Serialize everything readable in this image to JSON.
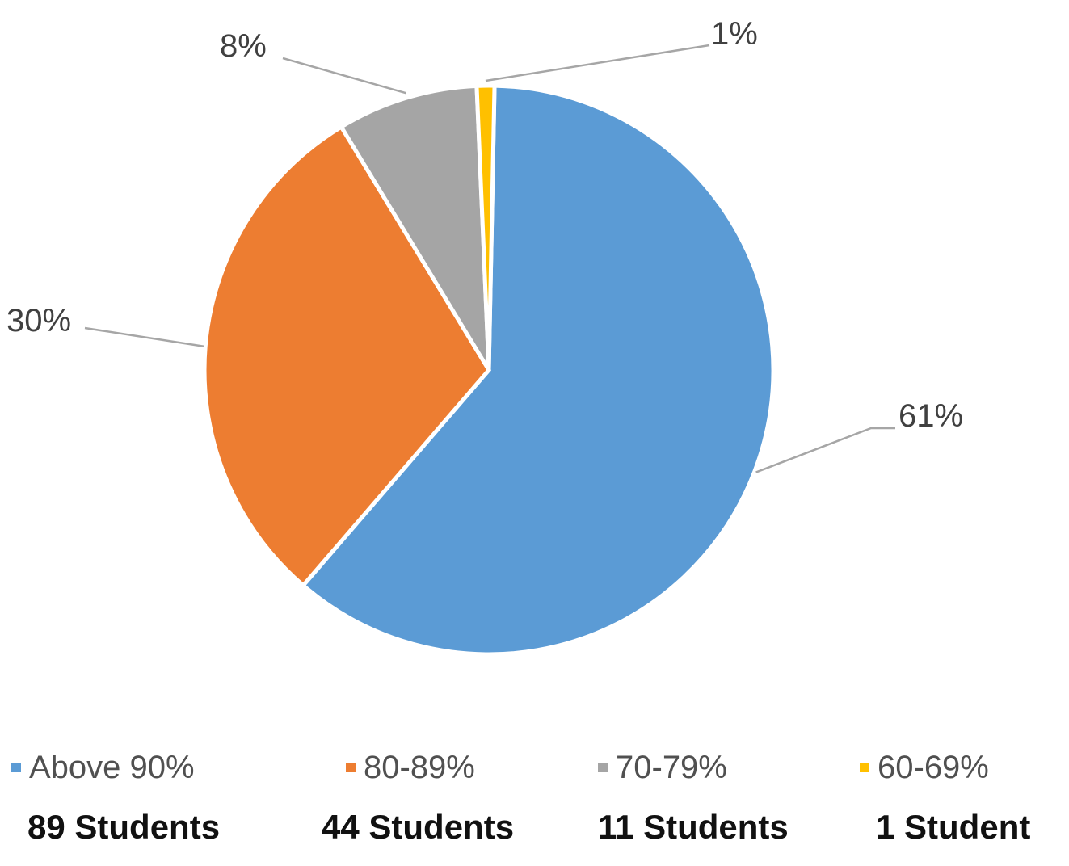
{
  "chart_data": {
    "type": "pie",
    "categories": [
      "Above 90%",
      "80-89%",
      "70-79%",
      "60-69%"
    ],
    "values": [
      61,
      30,
      8,
      1
    ],
    "value_labels": [
      "61%",
      "30%",
      "8%",
      "1%"
    ],
    "counts": [
      "89 Students",
      "44 Students",
      "11 Students",
      "1 Student"
    ],
    "colors": [
      "#5B9BD5",
      "#ED7D31",
      "#A5A5A5",
      "#FFC000"
    ],
    "legend_position": "bottom"
  }
}
